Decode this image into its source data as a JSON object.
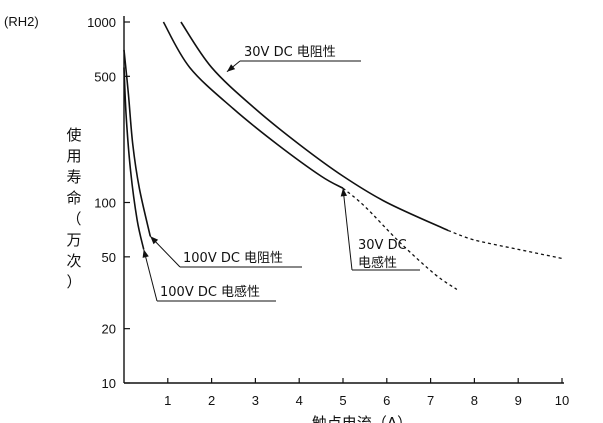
{
  "chart_data": {
    "type": "line",
    "tag_label": "(RH2)",
    "ylabel": "使用寿命（万次）",
    "xlabel": "触点电流（A）",
    "xlim": [
      0,
      10
    ],
    "ylim": [
      10,
      1000
    ],
    "y_scale": "log",
    "x_ticks": [
      1,
      2,
      3,
      4,
      5,
      6,
      7,
      8,
      9,
      10
    ],
    "y_ticks": [
      10,
      20,
      50,
      100,
      500,
      1000
    ],
    "grid": false,
    "series": [
      {
        "name": "30V DC 电阻性",
        "solid": [
          [
            1.3,
            1000
          ],
          [
            2,
            560
          ],
          [
            3,
            330
          ],
          [
            4,
            210
          ],
          [
            5,
            140
          ],
          [
            6,
            100
          ],
          [
            7.4,
            70
          ]
        ],
        "dashed": [
          [
            7.4,
            70
          ],
          [
            8,
            62
          ],
          [
            9,
            55
          ],
          [
            10,
            49
          ]
        ]
      },
      {
        "name": "30V DC 电感性",
        "solid": [
          [
            0.9,
            1000
          ],
          [
            1.5,
            560
          ],
          [
            2.5,
            330
          ],
          [
            3.5,
            210
          ],
          [
            4.5,
            140
          ],
          [
            5.0,
            120
          ]
        ],
        "dashed": [
          [
            5.0,
            120
          ],
          [
            5.5,
            95
          ],
          [
            6.3,
            60
          ],
          [
            7.1,
            40
          ],
          [
            7.6,
            33
          ]
        ]
      },
      {
        "name": "100V DC 电阻性",
        "solid": [
          [
            0.0,
            700
          ],
          [
            0.1,
            400
          ],
          [
            0.2,
            210
          ],
          [
            0.35,
            120
          ],
          [
            0.6,
            65
          ]
        ]
      },
      {
        "name": "100V DC 电感性",
        "solid": [
          [
            0.0,
            560
          ],
          [
            0.05,
            300
          ],
          [
            0.15,
            150
          ],
          [
            0.3,
            80
          ],
          [
            0.45,
            55
          ]
        ]
      }
    ],
    "annotations": [
      {
        "text": "30V DC 电阻性",
        "target": [
          2.35,
          530
        ]
      },
      {
        "lines": [
          "30V DC",
          "电感性"
        ],
        "target": [
          5.0,
          120
        ]
      },
      {
        "text": "100V DC 电阻性",
        "target": [
          0.6,
          65
        ]
      },
      {
        "text": "100V DC 电感性",
        "target": [
          0.45,
          55
        ]
      }
    ]
  }
}
